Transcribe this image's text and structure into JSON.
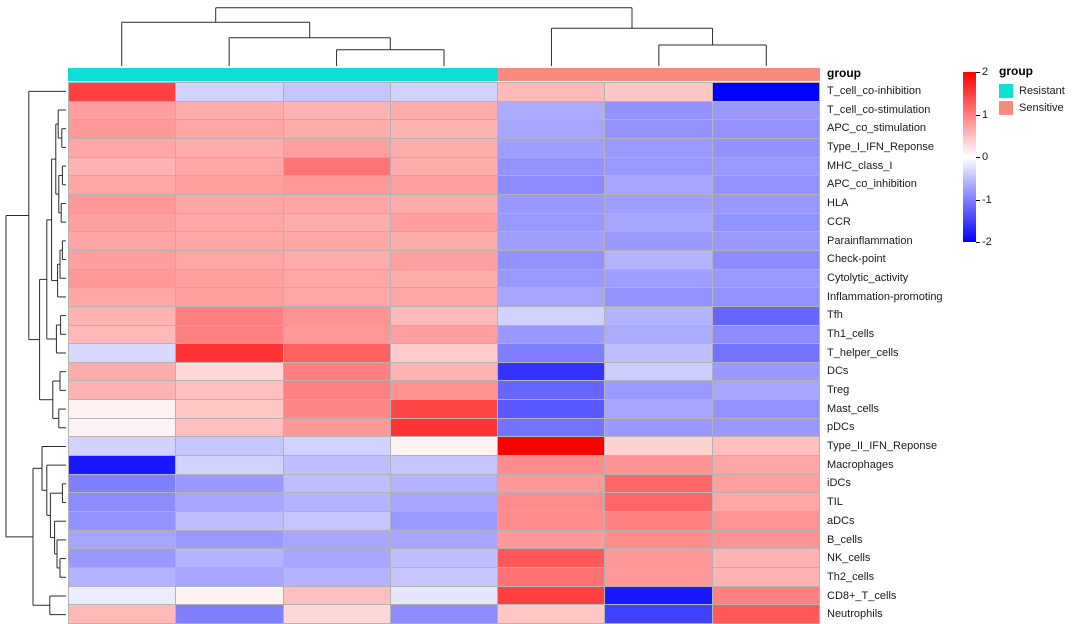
{
  "chart_data": {
    "type": "heatmap",
    "title": "",
    "rows": [
      "T_cell_co-inhibition",
      "T_cell_co-stimulation",
      "APC_co_stimulation",
      "Type_I_IFN_Reponse",
      "MHC_class_I",
      "APC_co_inhibition",
      "HLA",
      "CCR",
      "Parainflammation",
      "Check-point",
      "Cytolytic_activity",
      "Inflammation-promoting",
      "Tfh",
      "Th1_cells",
      "T_helper_cells",
      "DCs",
      "Treg",
      "Mast_cells",
      "pDCs",
      "Type_II_IFN_Reponse",
      "Macrophages",
      "iDCs",
      "TIL",
      "aDCs",
      "B_cells",
      "NK_cells",
      "Th2_cells",
      "CD8+_T_cells",
      "Neutrophils"
    ],
    "columns": {
      "count": 7,
      "groups": [
        "Resistant",
        "Resistant",
        "Resistant",
        "Resistant",
        "Sensitive",
        "Sensitive",
        "Sensitive"
      ]
    },
    "values": [
      [
        1.5,
        -0.35,
        -0.45,
        -0.35,
        0.55,
        0.45,
        -2.0
      ],
      [
        0.75,
        0.65,
        0.6,
        0.65,
        -0.65,
        -0.85,
        -0.8
      ],
      [
        0.8,
        0.7,
        0.65,
        0.6,
        -0.7,
        -0.85,
        -0.85
      ],
      [
        0.7,
        0.65,
        0.75,
        0.65,
        -0.75,
        -0.8,
        -0.85
      ],
      [
        0.6,
        0.7,
        1.1,
        0.65,
        -0.85,
        -0.8,
        -0.8
      ],
      [
        0.7,
        0.75,
        0.8,
        0.75,
        -0.9,
        -0.7,
        -0.85
      ],
      [
        0.8,
        0.7,
        0.7,
        0.65,
        -0.8,
        -0.75,
        -0.8
      ],
      [
        0.75,
        0.7,
        0.65,
        0.75,
        -0.8,
        -0.7,
        -0.85
      ],
      [
        0.7,
        0.7,
        0.7,
        0.65,
        -0.75,
        -0.8,
        -0.8
      ],
      [
        0.75,
        0.7,
        0.65,
        0.75,
        -0.85,
        -0.6,
        -0.9
      ],
      [
        0.8,
        0.75,
        0.7,
        0.65,
        -0.8,
        -0.75,
        -0.8
      ],
      [
        0.7,
        0.75,
        0.7,
        0.7,
        -0.7,
        -0.85,
        -0.85
      ],
      [
        0.6,
        1.0,
        0.85,
        0.55,
        -0.35,
        -0.6,
        -1.2
      ],
      [
        0.55,
        1.0,
        0.8,
        0.75,
        -0.8,
        -0.65,
        -0.9
      ],
      [
        -0.3,
        1.6,
        1.25,
        0.4,
        -1.0,
        -0.5,
        -1.1
      ],
      [
        0.65,
        0.3,
        1.0,
        0.6,
        -1.6,
        -0.4,
        -0.8
      ],
      [
        0.6,
        0.5,
        1.0,
        0.85,
        -1.2,
        -0.8,
        -0.7
      ],
      [
        0.1,
        0.45,
        0.95,
        1.45,
        -1.3,
        -0.7,
        -0.85
      ],
      [
        0.1,
        0.5,
        0.8,
        1.6,
        -1.1,
        -0.8,
        -0.8
      ],
      [
        -0.35,
        -0.45,
        -0.35,
        0.1,
        2.0,
        0.35,
        0.5
      ],
      [
        -1.8,
        -0.35,
        -0.5,
        -0.45,
        0.9,
        0.85,
        0.7
      ],
      [
        -1.0,
        -0.8,
        -0.5,
        -0.6,
        0.8,
        1.2,
        0.75
      ],
      [
        -0.9,
        -0.7,
        -0.6,
        -0.7,
        0.9,
        1.2,
        0.7
      ],
      [
        -0.85,
        -0.5,
        -0.45,
        -0.8,
        0.9,
        1.0,
        0.85
      ],
      [
        -0.7,
        -0.8,
        -0.7,
        -0.7,
        0.8,
        0.9,
        0.85
      ],
      [
        -0.8,
        -0.6,
        -0.7,
        -0.5,
        1.3,
        0.8,
        0.6
      ],
      [
        -0.6,
        -0.7,
        -0.6,
        -0.45,
        1.1,
        0.8,
        0.6
      ],
      [
        -0.15,
        0.1,
        0.5,
        -0.2,
        1.5,
        -1.8,
        1.0
      ],
      [
        0.55,
        -1.0,
        0.3,
        -0.9,
        0.45,
        -1.5,
        1.3
      ]
    ],
    "colorscale": {
      "min": -2,
      "max": 2,
      "low": "#0000FF",
      "mid": "#FFFFFF",
      "high": "#FF0000",
      "ticks": [
        "2",
        "1",
        "0",
        "-1",
        "-2"
      ],
      "tick_values": [
        2,
        1,
        0,
        -1,
        -2
      ]
    },
    "annotation": {
      "label": "group",
      "colors": {
        "Resistant": "#0ddfd6",
        "Sensitive": "#f88a7e"
      }
    },
    "legend": {
      "group_title": "group",
      "entries": [
        {
          "label": "Resistant",
          "color": "#0ddfd6"
        },
        {
          "label": "Sensitive",
          "color": "#f88a7e"
        }
      ]
    },
    "dendrograms": {
      "top_tree": [
        0.97,
        [
          0.73,
          0,
          [
            0.47,
            1,
            [
              0.27,
              2,
              3
            ]
          ]
        ],
        [
          0.63,
          4,
          [
            0.35,
            5,
            6
          ]
        ]
      ],
      "left_tree": [
        1.0,
        [
          0.62,
          0,
          [
            0.44,
            [
              0.32,
              [
                0.24,
                [
                  0.17,
                  [
                    0.13,
                    1,
                    [
                      0.07,
                      2,
                      3
                    ]
                  ],
                  [
                    0.12,
                    [
                      0.06,
                      4,
                      5
                    ],
                    [
                      0.08,
                      6,
                      7
                    ]
                  ]
                ],
                [
                  0.14,
                  [
                    0.1,
                    [
                      0.06,
                      8,
                      9
                    ],
                    10
                  ],
                  11
                ]
              ],
              [
                0.16,
                [
                  0.09,
                  12,
                  13
                ],
                14
              ]
            ],
            [
              0.22,
              [
                0.1,
                15,
                16
              ],
              [
                0.12,
                17,
                18
              ]
            ]
          ]
        ],
        [
          0.55,
          [
            0.4,
            19,
            [
              0.32,
              20,
              [
                0.26,
                [
                  0.06,
                  21,
                  22
                ],
                [
                  0.19,
                  23,
                  [
                    0.15,
                    24,
                    [
                      0.1,
                      25,
                      26
                    ]
                  ]
                ]
              ]
            ]
          ],
          [
            0.27,
            27,
            28
          ]
        ]
      ]
    }
  }
}
